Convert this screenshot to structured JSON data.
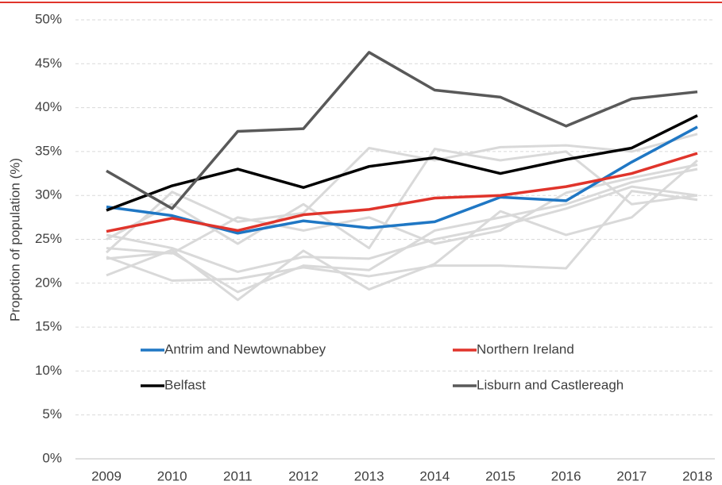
{
  "chart_data": {
    "type": "line",
    "y_label": "Propotion of population (%)",
    "categories": [
      "2009",
      "2010",
      "2011",
      "2012",
      "2013",
      "2014",
      "2015",
      "2016",
      "2017",
      "2018"
    ],
    "ylim": [
      0,
      50
    ],
    "yticks": [
      {
        "value": 0,
        "label": "0%"
      },
      {
        "value": 5,
        "label": "5%"
      },
      {
        "value": 10,
        "label": "10%"
      },
      {
        "value": 15,
        "label": "15%"
      },
      {
        "value": 20,
        "label": "20%"
      },
      {
        "value": 25,
        "label": "25%"
      },
      {
        "value": 30,
        "label": "30%"
      },
      {
        "value": 35,
        "label": "35%"
      },
      {
        "value": 40,
        "label": "40%"
      },
      {
        "value": 45,
        "label": "45%"
      },
      {
        "value": 50,
        "label": "50%"
      }
    ],
    "grid": true,
    "legend": "bottom",
    "series": [
      {
        "color": "#d9d9d9",
        "values": [
          23.5,
          30.4,
          27.0,
          28.0,
          35.4,
          34.0,
          35.5,
          35.7,
          35.0,
          37.0
        ]
      },
      {
        "color": "#d9d9d9",
        "values": [
          25.0,
          29.0,
          24.5,
          29.0,
          24.0,
          35.3,
          34.0,
          35.0,
          29.0,
          30.0
        ]
      },
      {
        "color": "#d9d9d9",
        "values": [
          22.8,
          23.5,
          19.0,
          22.0,
          21.5,
          26.0,
          27.5,
          29.0,
          31.5,
          33.0
        ]
      },
      {
        "color": "#d9d9d9",
        "values": [
          20.9,
          23.8,
          18.1,
          23.7,
          19.3,
          22.2,
          28.2,
          25.5,
          27.5,
          34.0
        ]
      },
      {
        "color": "#d9d9d9",
        "values": [
          23.0,
          20.3,
          20.5,
          21.8,
          20.8,
          22.0,
          22.0,
          21.7,
          30.5,
          29.5
        ]
      },
      {
        "color": "#d9d9d9",
        "values": [
          25.5,
          24.0,
          21.3,
          23.0,
          22.8,
          25.0,
          26.5,
          28.5,
          31.0,
          30.0
        ]
      },
      {
        "color": "#d9d9d9",
        "values": [
          24.0,
          23.4,
          27.5,
          26.0,
          27.5,
          24.5,
          26.0,
          30.3,
          32.0,
          33.5
        ]
      },
      {
        "name": "Antrim and Newtownabbey",
        "color": "#1f77c4",
        "values": [
          28.7,
          27.7,
          25.7,
          27.1,
          26.3,
          27.0,
          29.8,
          29.4,
          33.8,
          37.8
        ]
      },
      {
        "name": "Northern Ireland",
        "color": "#e0342b",
        "values": [
          25.9,
          27.4,
          26.0,
          27.8,
          28.4,
          29.7,
          30.0,
          31.0,
          32.5,
          34.8
        ]
      },
      {
        "name": "Belfast",
        "color": "#000000",
        "values": [
          28.3,
          31.1,
          33.0,
          30.9,
          33.3,
          34.3,
          32.5,
          34.1,
          35.4,
          39.1
        ]
      },
      {
        "name": "Lisburn and Castlereagh",
        "color": "#595959",
        "values": [
          32.8,
          28.5,
          37.3,
          37.6,
          46.3,
          42.0,
          41.2,
          37.9,
          41.0,
          41.8
        ]
      }
    ]
  }
}
